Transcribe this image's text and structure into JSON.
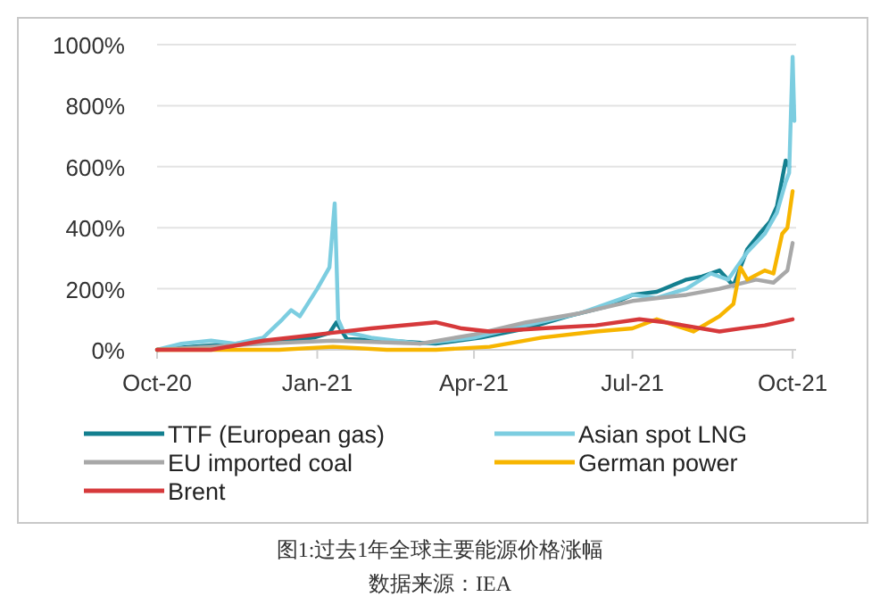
{
  "chart_data": {
    "type": "line",
    "xlim": [
      "2020-10-01",
      "2021-10-03"
    ],
    "xticks": [
      {
        "value": "2020-10-01",
        "label": "Oct-20"
      },
      {
        "value": "2021-01-01",
        "label": "Jan-21"
      },
      {
        "value": "2021-04-01",
        "label": "Apr-21"
      },
      {
        "value": "2021-07-01",
        "label": "Jul-21"
      },
      {
        "value": "2021-10-01",
        "label": "Oct-21"
      }
    ],
    "ylim": [
      0,
      1000
    ],
    "yticks": [
      {
        "value": 0,
        "label": "0%"
      },
      {
        "value": 200,
        "label": "200%"
      },
      {
        "value": 400,
        "label": "400%"
      },
      {
        "value": 600,
        "label": "600%"
      },
      {
        "value": 800,
        "label": "800%"
      },
      {
        "value": 1000,
        "label": "1000%"
      }
    ],
    "grid": "y",
    "legend": "bottom",
    "marker": "none",
    "line_style": "solid",
    "series": [
      {
        "name": "TTF (European gas)",
        "color": "#137f8f",
        "x": [
          "2020-10-01",
          "2020-10-20",
          "2020-11-15",
          "2020-12-10",
          "2020-12-30",
          "2021-01-08",
          "2021-01-12",
          "2021-01-18",
          "2021-02-10",
          "2021-03-10",
          "2021-04-05",
          "2021-05-01",
          "2021-05-25",
          "2021-06-15",
          "2021-07-01",
          "2021-07-15",
          "2021-08-01",
          "2021-08-10",
          "2021-08-20",
          "2021-08-28",
          "2021-09-05",
          "2021-09-12",
          "2021-09-18",
          "2021-09-22",
          "2021-09-27",
          "2021-09-29"
        ],
        "values": [
          0,
          10,
          20,
          25,
          40,
          55,
          90,
          35,
          30,
          20,
          40,
          70,
          110,
          140,
          180,
          190,
          230,
          240,
          260,
          210,
          330,
          380,
          420,
          470,
          620,
          600
        ]
      },
      {
        "name": "Asian spot LNG",
        "color": "#7ccde0",
        "x": [
          "2020-10-01",
          "2020-10-15",
          "2020-11-01",
          "2020-11-15",
          "2020-12-01",
          "2020-12-12",
          "2020-12-17",
          "2020-12-22",
          "2021-01-01",
          "2021-01-08",
          "2021-01-11",
          "2021-01-12",
          "2021-01-13",
          "2021-01-16",
          "2021-02-01",
          "2021-03-01",
          "2021-04-01",
          "2021-05-01",
          "2021-06-01",
          "2021-07-01",
          "2021-07-15",
          "2021-08-01",
          "2021-08-15",
          "2021-08-25",
          "2021-09-05",
          "2021-09-15",
          "2021-09-22",
          "2021-09-27",
          "2021-09-29",
          "2021-10-01",
          "2021-10-02"
        ],
        "values": [
          0,
          20,
          30,
          20,
          40,
          100,
          130,
          110,
          200,
          270,
          480,
          300,
          100,
          60,
          40,
          20,
          40,
          80,
          120,
          180,
          170,
          200,
          250,
          230,
          320,
          380,
          450,
          550,
          580,
          960,
          750
        ]
      },
      {
        "name": "EU imported coal",
        "color": "#a8a8a8",
        "x": [
          "2020-10-01",
          "2020-12-01",
          "2021-01-10",
          "2021-03-01",
          "2021-04-01",
          "2021-05-01",
          "2021-06-01",
          "2021-07-01",
          "2021-08-01",
          "2021-08-20",
          "2021-09-10",
          "2021-09-20",
          "2021-09-28",
          "2021-10-01"
        ],
        "values": [
          0,
          20,
          30,
          20,
          50,
          90,
          120,
          160,
          180,
          200,
          230,
          220,
          260,
          350
        ]
      },
      {
        "name": "German power",
        "color": "#f7b500",
        "x": [
          "2020-10-01",
          "2020-11-15",
          "2020-12-10",
          "2021-01-10",
          "2021-02-10",
          "2021-03-10",
          "2021-04-10",
          "2021-05-10",
          "2021-06-10",
          "2021-07-01",
          "2021-07-15",
          "2021-08-05",
          "2021-08-20",
          "2021-08-28",
          "2021-09-01",
          "2021-09-05",
          "2021-09-15",
          "2021-09-20",
          "2021-09-25",
          "2021-09-28",
          "2021-10-01"
        ],
        "values": [
          0,
          0,
          0,
          10,
          0,
          0,
          10,
          40,
          60,
          70,
          100,
          60,
          110,
          150,
          270,
          230,
          260,
          250,
          380,
          400,
          520
        ]
      },
      {
        "name": "Brent",
        "color": "#d6393b",
        "x": [
          "2020-10-01",
          "2020-11-01",
          "2020-12-01",
          "2021-01-01",
          "2021-02-01",
          "2021-03-10",
          "2021-03-25",
          "2021-04-10",
          "2021-05-10",
          "2021-06-10",
          "2021-07-05",
          "2021-07-20",
          "2021-08-20",
          "2021-09-01",
          "2021-09-15",
          "2021-10-01"
        ],
        "values": [
          0,
          0,
          30,
          50,
          70,
          90,
          70,
          60,
          70,
          80,
          100,
          90,
          60,
          70,
          80,
          100
        ]
      }
    ],
    "annotations": [
      "图1:过去1年全球主要能源价格涨幅",
      "数据来源：IEA"
    ]
  }
}
